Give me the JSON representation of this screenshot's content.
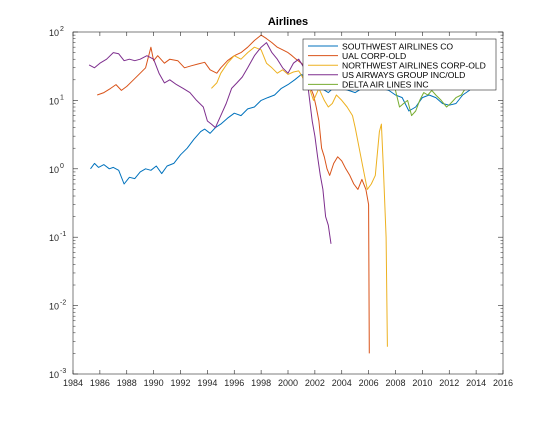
{
  "chart_data": {
    "type": "line",
    "title": "Airlines",
    "xlabel": "",
    "ylabel": "",
    "yscale": "log",
    "xlim": [
      1984,
      2016
    ],
    "ylim": [
      0.001,
      100
    ],
    "grid": false,
    "legend_position": "top-right",
    "xticks": [
      "1984",
      "1986",
      "1988",
      "1990",
      "1992",
      "1994",
      "1996",
      "1998",
      "2000",
      "2002",
      "2004",
      "2006",
      "2008",
      "2010",
      "2012",
      "2014",
      "2016"
    ],
    "yticks": [
      {
        "value": 0.001,
        "base": "10",
        "exp": "-3"
      },
      {
        "value": 0.01,
        "base": "10",
        "exp": "-2"
      },
      {
        "value": 0.1,
        "base": "10",
        "exp": "-1"
      },
      {
        "value": 1,
        "base": "10",
        "exp": "0"
      },
      {
        "value": 10,
        "base": "10",
        "exp": "1"
      },
      {
        "value": 100,
        "base": "10",
        "exp": "2"
      }
    ],
    "series": [
      {
        "name": "SOUTHWEST AIRLINES CO",
        "color": "#0072BD",
        "points": [
          [
            1985.3,
            1.0
          ],
          [
            1985.6,
            1.2
          ],
          [
            1985.9,
            1.05
          ],
          [
            1986.3,
            1.15
          ],
          [
            1986.7,
            1.0
          ],
          [
            1987.0,
            1.05
          ],
          [
            1987.4,
            0.95
          ],
          [
            1987.8,
            0.6
          ],
          [
            1988.2,
            0.75
          ],
          [
            1988.6,
            0.72
          ],
          [
            1989.0,
            0.9
          ],
          [
            1989.4,
            1.0
          ],
          [
            1989.8,
            0.95
          ],
          [
            1990.2,
            1.1
          ],
          [
            1990.6,
            0.85
          ],
          [
            1991.0,
            1.1
          ],
          [
            1991.5,
            1.2
          ],
          [
            1992.0,
            1.6
          ],
          [
            1992.5,
            2.0
          ],
          [
            1993.0,
            2.7
          ],
          [
            1993.5,
            3.5
          ],
          [
            1993.8,
            3.8
          ],
          [
            1994.2,
            3.3
          ],
          [
            1994.6,
            4.0
          ],
          [
            1995.0,
            4.5
          ],
          [
            1995.5,
            5.5
          ],
          [
            1996.0,
            6.5
          ],
          [
            1996.5,
            6.0
          ],
          [
            1997.0,
            7.5
          ],
          [
            1997.5,
            8.0
          ],
          [
            1998.0,
            10
          ],
          [
            1998.5,
            11
          ],
          [
            1999.0,
            12
          ],
          [
            1999.5,
            15
          ],
          [
            2000.0,
            17
          ],
          [
            2000.5,
            20
          ],
          [
            2001.0,
            24
          ],
          [
            2001.5,
            21
          ],
          [
            2002.0,
            17
          ],
          [
            2002.5,
            15
          ],
          [
            2003.0,
            13
          ],
          [
            2003.5,
            16
          ],
          [
            2004.0,
            15
          ],
          [
            2004.5,
            14
          ],
          [
            2005.0,
            13
          ],
          [
            2005.5,
            15
          ],
          [
            2006.0,
            17
          ],
          [
            2006.5,
            16
          ],
          [
            2007.0,
            15
          ],
          [
            2007.5,
            14
          ],
          [
            2008.0,
            12
          ],
          [
            2008.5,
            11
          ],
          [
            2009.0,
            7
          ],
          [
            2009.5,
            8
          ],
          [
            2010.0,
            11
          ],
          [
            2010.5,
            12
          ],
          [
            2011.0,
            11
          ],
          [
            2011.5,
            9
          ],
          [
            2012.0,
            8.5
          ],
          [
            2012.5,
            9
          ],
          [
            2013.0,
            12
          ],
          [
            2013.5,
            14
          ],
          [
            2014.0,
            20
          ],
          [
            2014.5,
            27
          ],
          [
            2015.0,
            35
          ],
          [
            2015.4,
            40
          ]
        ]
      },
      {
        "name": "UAL CORP-OLD",
        "color": "#D95319",
        "points": [
          [
            1985.8,
            12
          ],
          [
            1986.3,
            13
          ],
          [
            1986.8,
            15
          ],
          [
            1987.2,
            17
          ],
          [
            1987.6,
            14
          ],
          [
            1988.0,
            16
          ],
          [
            1988.5,
            20
          ],
          [
            1989.0,
            25
          ],
          [
            1989.4,
            30
          ],
          [
            1989.8,
            60
          ],
          [
            1990.0,
            38
          ],
          [
            1990.3,
            45
          ],
          [
            1990.8,
            35
          ],
          [
            1991.2,
            40
          ],
          [
            1991.8,
            38
          ],
          [
            1992.3,
            30
          ],
          [
            1992.8,
            32
          ],
          [
            1993.3,
            34
          ],
          [
            1993.8,
            36
          ],
          [
            1994.2,
            28
          ],
          [
            1994.7,
            25
          ],
          [
            1995.0,
            30
          ],
          [
            1995.5,
            38
          ],
          [
            1996.0,
            45
          ],
          [
            1996.5,
            50
          ],
          [
            1997.0,
            60
          ],
          [
            1997.5,
            75
          ],
          [
            1998.0,
            90
          ],
          [
            1998.4,
            80
          ],
          [
            1998.8,
            70
          ],
          [
            1999.2,
            60
          ],
          [
            1999.6,
            55
          ],
          [
            2000.0,
            50
          ],
          [
            2000.3,
            45
          ],
          [
            2000.6,
            40
          ],
          [
            2001.0,
            35
          ],
          [
            2001.4,
            30
          ],
          [
            2001.7,
            15
          ],
          [
            2001.9,
            12
          ],
          [
            2002.1,
            8
          ],
          [
            2002.3,
            5
          ],
          [
            2002.5,
            2
          ],
          [
            2002.7,
            1.5
          ],
          [
            2002.9,
            1.0
          ],
          [
            2003.1,
            0.8
          ],
          [
            2003.4,
            1.2
          ],
          [
            2003.7,
            1.5
          ],
          [
            2004.0,
            1.3
          ],
          [
            2004.3,
            1.0
          ],
          [
            2004.6,
            0.8
          ],
          [
            2004.9,
            0.6
          ],
          [
            2005.2,
            0.5
          ],
          [
            2005.5,
            0.7
          ],
          [
            2005.8,
            0.5
          ],
          [
            2006.0,
            0.3
          ],
          [
            2006.05,
            0.002
          ]
        ]
      },
      {
        "name": "NORTHWEST AIRLINES CORP-OLD",
        "color": "#EDB120",
        "points": [
          [
            1994.3,
            15
          ],
          [
            1994.7,
            18
          ],
          [
            1995.0,
            25
          ],
          [
            1995.5,
            35
          ],
          [
            1996.0,
            45
          ],
          [
            1996.5,
            40
          ],
          [
            1997.0,
            50
          ],
          [
            1997.5,
            60
          ],
          [
            1998.0,
            55
          ],
          [
            1998.4,
            35
          ],
          [
            1998.8,
            30
          ],
          [
            1999.2,
            25
          ],
          [
            1999.6,
            28
          ],
          [
            2000.0,
            24
          ],
          [
            2000.4,
            26
          ],
          [
            2000.8,
            27
          ],
          [
            2001.2,
            20
          ],
          [
            2001.6,
            15
          ],
          [
            2001.9,
            10
          ],
          [
            2002.3,
            15
          ],
          [
            2002.7,
            10
          ],
          [
            2003.0,
            8
          ],
          [
            2003.3,
            9
          ],
          [
            2003.6,
            12
          ],
          [
            2004.0,
            10
          ],
          [
            2004.4,
            8
          ],
          [
            2004.8,
            6
          ],
          [
            2005.0,
            4
          ],
          [
            2005.3,
            2
          ],
          [
            2005.6,
            1.0
          ],
          [
            2005.9,
            0.5
          ],
          [
            2006.2,
            0.6
          ],
          [
            2006.5,
            0.8
          ],
          [
            2006.8,
            3.5
          ],
          [
            2006.95,
            4.5
          ],
          [
            2007.1,
            1.0
          ],
          [
            2007.3,
            0.1
          ],
          [
            2007.4,
            0.0025
          ]
        ]
      },
      {
        "name": "US AIRWAYS GROUP INC/OLD",
        "color": "#7E2F8E",
        "points": [
          [
            1985.2,
            33
          ],
          [
            1985.6,
            30
          ],
          [
            1986.0,
            35
          ],
          [
            1986.5,
            40
          ],
          [
            1987.0,
            50
          ],
          [
            1987.4,
            48
          ],
          [
            1987.8,
            38
          ],
          [
            1988.2,
            40
          ],
          [
            1988.6,
            38
          ],
          [
            1989.0,
            40
          ],
          [
            1989.5,
            45
          ],
          [
            1990.0,
            40
          ],
          [
            1990.4,
            25
          ],
          [
            1990.8,
            18
          ],
          [
            1991.2,
            20
          ],
          [
            1991.7,
            17
          ],
          [
            1992.2,
            15
          ],
          [
            1992.7,
            13
          ],
          [
            1993.2,
            10
          ],
          [
            1993.7,
            8
          ],
          [
            1994.0,
            5
          ],
          [
            1994.3,
            4.5
          ],
          [
            1994.6,
            4
          ],
          [
            1995.0,
            6
          ],
          [
            1995.4,
            9
          ],
          [
            1995.8,
            15
          ],
          [
            1996.2,
            18
          ],
          [
            1996.6,
            22
          ],
          [
            1997.0,
            30
          ],
          [
            1997.5,
            45
          ],
          [
            1998.0,
            60
          ],
          [
            1998.4,
            70
          ],
          [
            1998.8,
            50
          ],
          [
            1999.2,
            40
          ],
          [
            1999.6,
            30
          ],
          [
            2000.0,
            25
          ],
          [
            2000.4,
            35
          ],
          [
            2000.8,
            40
          ],
          [
            2001.2,
            30
          ],
          [
            2001.5,
            15
          ],
          [
            2001.8,
            5
          ],
          [
            2002.0,
            3
          ],
          [
            2002.2,
            1.5
          ],
          [
            2002.4,
            0.8
          ],
          [
            2002.6,
            0.5
          ],
          [
            2002.8,
            0.2
          ],
          [
            2003.0,
            0.15
          ],
          [
            2003.2,
            0.08
          ]
        ]
      },
      {
        "name": "DELTA AIR LINES INC",
        "color": "#77AC30",
        "points": [
          [
            2007.4,
            18
          ],
          [
            2007.7,
            20
          ],
          [
            2008.0,
            14
          ],
          [
            2008.3,
            8
          ],
          [
            2008.6,
            9
          ],
          [
            2008.9,
            10
          ],
          [
            2009.2,
            6
          ],
          [
            2009.5,
            7
          ],
          [
            2009.8,
            10
          ],
          [
            2010.1,
            13
          ],
          [
            2010.4,
            12
          ],
          [
            2010.7,
            14
          ],
          [
            2011.0,
            12
          ],
          [
            2011.4,
            10
          ],
          [
            2011.8,
            8
          ],
          [
            2012.1,
            9
          ],
          [
            2012.5,
            11
          ],
          [
            2012.9,
            12
          ],
          [
            2013.2,
            15
          ],
          [
            2013.6,
            20
          ],
          [
            2014.0,
            30
          ],
          [
            2014.4,
            38
          ],
          [
            2014.8,
            45
          ],
          [
            2015.2,
            50
          ]
        ]
      }
    ]
  }
}
